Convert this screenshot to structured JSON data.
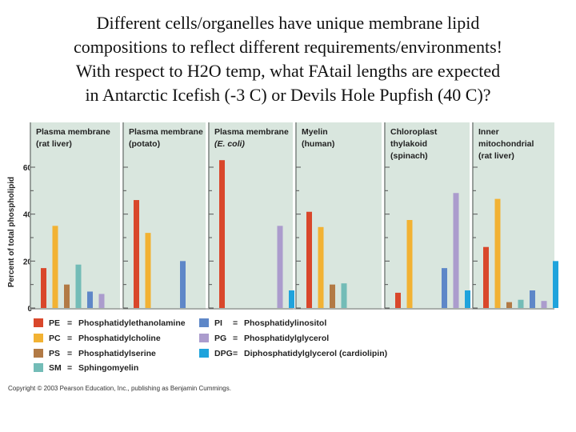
{
  "title_lines": [
    "Different cells/organelles have unique membrane lipid",
    "compositions to reflect different requirements/environments!",
    "With respect to H2O temp, what FAtail lengths are expected",
    "in Antarctic Icefish (-3 C) or Devils Hole Pupfish (40 C)?"
  ],
  "copyright": "Copyright © 2003 Pearson Education, Inc., publishing as Benjamin Cummings.",
  "chart_data": {
    "type": "bar",
    "ylabel": "Percent of total phospholipid",
    "ylim": [
      0,
      70
    ],
    "yticks": [
      0,
      20,
      40,
      60
    ],
    "lipid_order": [
      "PE",
      "PC",
      "PS",
      "SM",
      "PI",
      "PG",
      "DPG"
    ],
    "legend": [
      {
        "code": "PE",
        "eq": "=",
        "name": "Phosphatidylethanolamine",
        "color": "#d9472b"
      },
      {
        "code": "PC",
        "eq": "=",
        "name": "Phosphatidylcholine",
        "color": "#f2b233"
      },
      {
        "code": "PS",
        "eq": "=",
        "name": "Phosphatidylserine",
        "color": "#b27a45"
      },
      {
        "code": "SM",
        "eq": "=",
        "name": "Sphingomyelin",
        "color": "#73bcb7"
      },
      {
        "code": "PI",
        "eq": "=",
        "name": "Phosphatidylinositol",
        "color": "#5e87c8"
      },
      {
        "code": "PG",
        "eq": "=",
        "name": "Phosphatidylglycerol",
        "color": "#ab9ccd"
      },
      {
        "code": "DPG",
        "eq": "=",
        "name": "Diphosphatidylglycerol (cardiolipin)",
        "color": "#1fa3dc"
      }
    ],
    "panels": [
      {
        "title": [
          "Plasma membrane",
          "(rat liver)"
        ],
        "italic_line": -1,
        "values": [
          17,
          35,
          10,
          18.5,
          7,
          6,
          null
        ]
      },
      {
        "title": [
          "Plasma membrane",
          "(potato)"
        ],
        "italic_line": -1,
        "values": [
          46,
          32,
          null,
          null,
          20,
          null,
          null
        ]
      },
      {
        "title": [
          "Plasma membrane",
          "(E. coli)"
        ],
        "italic_line": 1,
        "values": [
          63,
          null,
          null,
          null,
          null,
          35,
          7.5
        ]
      },
      {
        "title": [
          "Myelin",
          "(human)"
        ],
        "italic_line": -1,
        "values": [
          41,
          34.5,
          10,
          10.5,
          null,
          null,
          null
        ]
      },
      {
        "title": [
          "Chloroplast",
          "thylakoid",
          "(spinach)"
        ],
        "italic_line": -1,
        "values": [
          6.5,
          37.5,
          null,
          null,
          17,
          49,
          7.5
        ]
      },
      {
        "title": [
          "Inner",
          "mitochondrial",
          "(rat liver)"
        ],
        "italic_line": -1,
        "values": [
          26,
          46.5,
          2.5,
          3.5,
          7.5,
          3,
          20
        ]
      }
    ]
  }
}
